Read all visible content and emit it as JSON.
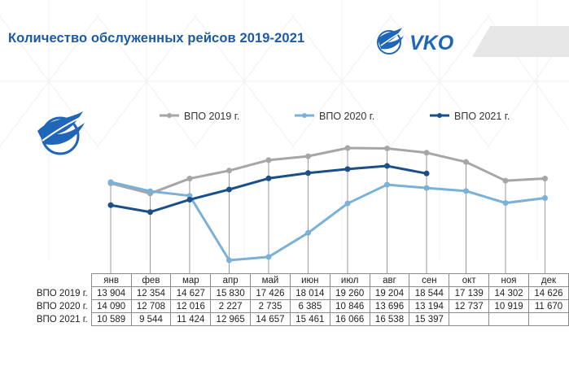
{
  "header": {
    "title": "Количество обслуженных рейсов 2019-2021",
    "brand": "VKO"
  },
  "colors": {
    "title": "#1b5aa6",
    "series_2019": "#a6a6a6",
    "series_2020": "#79b1d8",
    "series_2021": "#1a4f8a",
    "brand_blue": "#1f66b8"
  },
  "icons": [
    "vko-bird-logo-icon",
    "bird-emblem-icon"
  ],
  "chart_data": {
    "type": "line",
    "categories": [
      "янв",
      "фев",
      "мар",
      "апр",
      "май",
      "июн",
      "июл",
      "авг",
      "сен",
      "окт",
      "ноя",
      "дек"
    ],
    "series": [
      {
        "name": "ВПО 2019 г.",
        "values": [
          13904,
          12354,
          14627,
          15830,
          17426,
          18014,
          19260,
          19204,
          18544,
          17139,
          14302,
          14626
        ]
      },
      {
        "name": "ВПО 2020 г.",
        "values": [
          14090,
          12708,
          12016,
          2227,
          2735,
          6385,
          10846,
          13696,
          13194,
          12737,
          10919,
          11670
        ]
      },
      {
        "name": "ВПО 2021 г.",
        "values": [
          10589,
          9544,
          11424,
          12965,
          14657,
          15461,
          16066,
          16538,
          15397,
          null,
          null,
          null
        ]
      }
    ],
    "table_rows": [
      {
        "label": "ВПО 2019 г.",
        "cells": [
          "13 904",
          "12 354",
          "14 627",
          "15 830",
          "17 426",
          "18 014",
          "19 260",
          "19 204",
          "18 544",
          "17 139",
          "14 302",
          "14 626"
        ]
      },
      {
        "label": "ВПО 2020 г.",
        "cells": [
          "14 090",
          "12 708",
          "12 016",
          "2 227",
          "2 735",
          "6 385",
          "10 846",
          "13 696",
          "13 194",
          "12 737",
          "10 919",
          "11 670"
        ]
      },
      {
        "label": "ВПО 2021 г.",
        "cells": [
          "10 589",
          "9 544",
          "11 424",
          "12 965",
          "14 657",
          "15 461",
          "16 066",
          "16 538",
          "15 397",
          "",
          "",
          ""
        ]
      }
    ],
    "legend": "top",
    "grid": false
  }
}
